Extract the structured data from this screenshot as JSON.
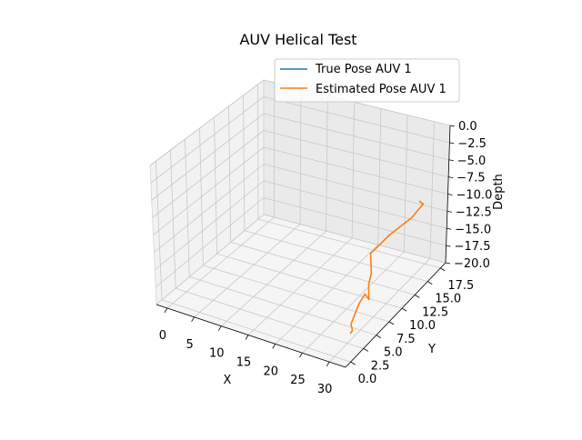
{
  "chart_data": {
    "type": "line",
    "projection": "3d",
    "title": "AUV Helical Test",
    "xlabel": "X",
    "ylabel": "Y",
    "zlabel": "Depth",
    "xlim": [
      -2,
      33
    ],
    "ylim": [
      -1,
      18.5
    ],
    "zlim": [
      -20,
      0
    ],
    "x_ticks": [
      "0",
      "5",
      "10",
      "15",
      "20",
      "25",
      "30"
    ],
    "y_ticks": [
      "0.0",
      "2.5",
      "5.0",
      "7.5",
      "10.0",
      "12.5",
      "15.0",
      "17.5"
    ],
    "z_ticks": [
      "0.0",
      "−2.5",
      "−5.0",
      "−7.5",
      "−10.0",
      "−12.5",
      "−15.0",
      "−17.5",
      "−20.0"
    ],
    "grid": true,
    "legend_position": "top-right",
    "series": [
      {
        "name": "True Pose AUV 1",
        "color": "#1f77b4",
        "x": [],
        "y": [],
        "z": []
      },
      {
        "name": "Estimated Pose AUV 1",
        "color": "#ff7f0e",
        "x": [
          30.0,
          29.3,
          28.6,
          28.5,
          29.0,
          29.6,
          30.0,
          29.0,
          28.5,
          27.8,
          29.8,
          32.0,
          31.7,
          30.0
        ],
        "y": [
          3.0,
          4.2,
          4.6,
          6.2,
          6.8,
          7.0,
          6.5,
          7.5,
          8.5,
          9.0,
          10.5,
          12.5,
          15.0,
          16.0
        ],
        "z": [
          -19.0,
          -19.6,
          -19.2,
          -17.5,
          -16.4,
          -17.2,
          -16.2,
          -15.5,
          -14.8,
          -12.5,
          -10.5,
          -9.0,
          -9.0,
          -9.7
        ]
      }
    ]
  }
}
